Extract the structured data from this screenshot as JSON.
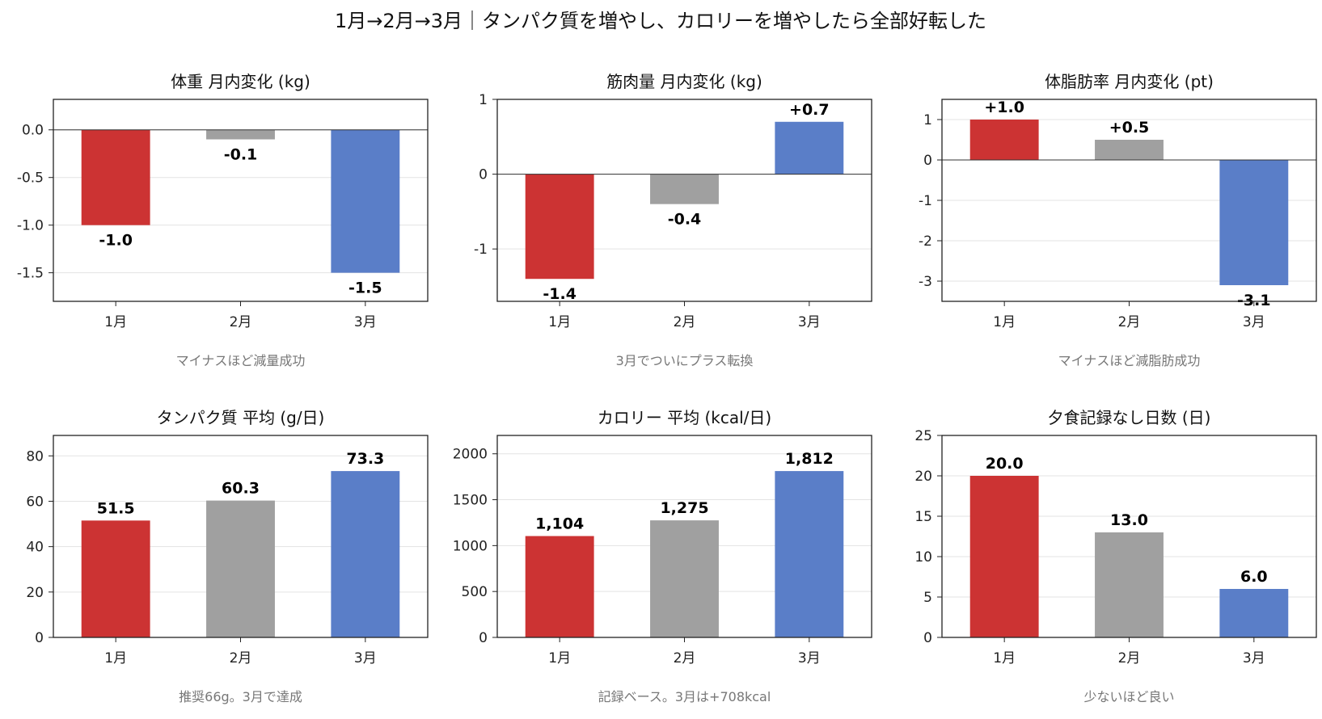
{
  "figure": {
    "title": "1月→2月→3月｜タンパク質を増やし、カロリーを増やしたら全部好転した"
  },
  "colors": {
    "jan": "#cc3333",
    "feb": "#a0a0a0",
    "mar": "#5a7ec8",
    "grid": "#e3e3e3",
    "axis": "#222222"
  },
  "chart_data": [
    {
      "type": "bar",
      "title": "体重 月内変化 (kg)",
      "categories": [
        "1月",
        "2月",
        "3月"
      ],
      "values": [
        -1.0,
        -0.1,
        -1.5
      ],
      "data_labels": [
        "-1.0",
        "-0.1",
        "-1.5"
      ],
      "ylim": [
        -1.8,
        0.32
      ],
      "yticks": [
        0.0,
        -0.5,
        -1.0,
        -1.5
      ],
      "ytick_labels": [
        "0.0",
        "-0.5",
        "-1.0",
        "-1.5"
      ],
      "zero_line": true,
      "grid": "y",
      "note": "マイナスほど減量成功"
    },
    {
      "type": "bar",
      "title": "筋肉量 月内変化 (kg)",
      "categories": [
        "1月",
        "2月",
        "3月"
      ],
      "values": [
        -1.4,
        -0.4,
        0.7
      ],
      "data_labels": [
        "-1.4",
        "-0.4",
        "+0.7"
      ],
      "ylim": [
        -1.7,
        1.0
      ],
      "yticks": [
        1,
        0,
        -1
      ],
      "ytick_labels": [
        "1",
        "0",
        "-1"
      ],
      "zero_line": true,
      "grid": "y",
      "note": "3月でついにプラス転換"
    },
    {
      "type": "bar",
      "title": "体脂肪率 月内変化 (pt)",
      "categories": [
        "1月",
        "2月",
        "3月"
      ],
      "values": [
        1.0,
        0.5,
        -3.1
      ],
      "data_labels": [
        "+1.0",
        "+0.5",
        "-3.1"
      ],
      "ylim": [
        -3.5,
        1.5
      ],
      "yticks": [
        1,
        0,
        -1,
        -2,
        -3
      ],
      "ytick_labels": [
        "1",
        "0",
        "-1",
        "-2",
        "-3"
      ],
      "zero_line": true,
      "grid": "y",
      "note": "マイナスほど減脂肪成功"
    },
    {
      "type": "bar",
      "title": "タンパク質 平均 (g/日)",
      "categories": [
        "1月",
        "2月",
        "3月"
      ],
      "values": [
        51.5,
        60.3,
        73.3
      ],
      "data_labels": [
        "51.5",
        "60.3",
        "73.3"
      ],
      "ylim": [
        0,
        89
      ],
      "yticks": [
        0,
        20,
        40,
        60,
        80
      ],
      "ytick_labels": [
        "0",
        "20",
        "40",
        "60",
        "80"
      ],
      "zero_line": false,
      "grid": "y",
      "note": "推奨66g。3月で達成"
    },
    {
      "type": "bar",
      "title": "カロリー 平均 (kcal/日)",
      "categories": [
        "1月",
        "2月",
        "3月"
      ],
      "values": [
        1104,
        1275,
        1812
      ],
      "data_labels": [
        "1,104",
        "1,275",
        "1,812"
      ],
      "ylim": [
        0,
        2200
      ],
      "yticks": [
        0,
        500,
        1000,
        1500,
        2000
      ],
      "ytick_labels": [
        "0",
        "500",
        "1000",
        "1500",
        "2000"
      ],
      "zero_line": false,
      "grid": "y",
      "note": "記録ベース。3月は+708kcal"
    },
    {
      "type": "bar",
      "title": "夕食記録なし日数 (日)",
      "categories": [
        "1月",
        "2月",
        "3月"
      ],
      "values": [
        20,
        13,
        6
      ],
      "data_labels": [
        "20.0",
        "13.0",
        "6.0"
      ],
      "ylim": [
        0,
        25
      ],
      "yticks": [
        0,
        5,
        10,
        15,
        20,
        25
      ],
      "ytick_labels": [
        "0",
        "5",
        "10",
        "15",
        "20",
        "25"
      ],
      "zero_line": false,
      "grid": "y",
      "note": "少ないほど良い"
    }
  ]
}
